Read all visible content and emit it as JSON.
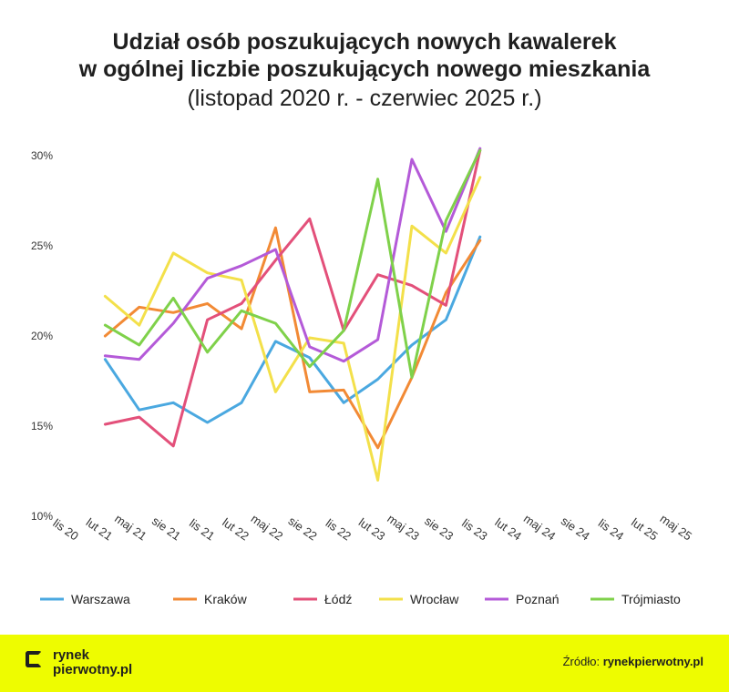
{
  "title": {
    "line1": "Udział osób poszukujących nowych kawalerek",
    "line2": "w ogólnej liczbie poszukujących nowego mieszkania",
    "line3": "(listopad 2020 r. - czerwiec 2025 r.)"
  },
  "footer": {
    "logo_line1": "rynek",
    "logo_line2": "pierwotny.pl",
    "source_label": "Źródło:",
    "source_name": "rynekpierwotny.pl",
    "background": "#eefc00"
  },
  "chart_data": {
    "type": "line",
    "categories": [
      "lis 20",
      "lut 21",
      "maj 21",
      "sie 21",
      "lis 21",
      "lut 22",
      "maj 22",
      "sie 22",
      "lis 22",
      "lut 23",
      "maj 23",
      "sie 23",
      "lis 23",
      "lut 24",
      "maj 24",
      "sie 24",
      "lis 24",
      "lut 25",
      "maj 25"
    ],
    "yticks": [
      "10%",
      "15%",
      "20%",
      "25%",
      "30%"
    ],
    "ylim": [
      10,
      30
    ],
    "grid": false,
    "legend_position": "bottom",
    "series": [
      {
        "name": "Warszawa",
        "color": "#4aa8e0",
        "values": [
          null,
          18.7,
          15.9,
          16.3,
          15.2,
          16.3,
          19.7,
          18.8,
          16.3,
          17.6,
          19.5,
          20.9,
          25.5,
          null,
          null,
          null,
          null,
          null,
          null
        ]
      },
      {
        "name": "Kraków",
        "color": "#f28a35",
        "values": [
          null,
          20.0,
          21.6,
          21.3,
          21.8,
          20.4,
          26.0,
          16.9,
          17.0,
          13.8,
          17.7,
          22.4,
          25.3,
          null,
          null,
          null,
          null,
          null,
          null
        ]
      },
      {
        "name": "Łódź",
        "color": "#e3507a",
        "values": [
          null,
          15.1,
          15.5,
          13.9,
          20.9,
          21.8,
          24.2,
          26.5,
          20.3,
          23.4,
          22.8,
          21.7,
          30.3,
          null,
          null,
          null,
          null,
          null,
          null
        ]
      },
      {
        "name": "Wrocław",
        "color": "#f3e04a",
        "values": [
          null,
          22.2,
          20.6,
          24.6,
          23.5,
          23.1,
          16.9,
          19.9,
          19.6,
          12.0,
          26.1,
          24.6,
          28.8,
          null,
          null,
          null,
          null,
          null,
          null
        ]
      },
      {
        "name": "Poznań",
        "color": "#b45ad8",
        "values": [
          null,
          18.9,
          18.7,
          20.7,
          23.2,
          23.9,
          24.8,
          19.4,
          18.6,
          19.8,
          29.8,
          25.8,
          30.4,
          null,
          null,
          null,
          null,
          null,
          null
        ]
      },
      {
        "name": "Trójmiasto",
        "color": "#7fd14a",
        "values": [
          null,
          20.6,
          19.5,
          22.1,
          19.1,
          21.4,
          20.7,
          18.3,
          20.3,
          28.7,
          17.7,
          26.4,
          30.3,
          null,
          null,
          null,
          null,
          null,
          null
        ]
      }
    ]
  }
}
